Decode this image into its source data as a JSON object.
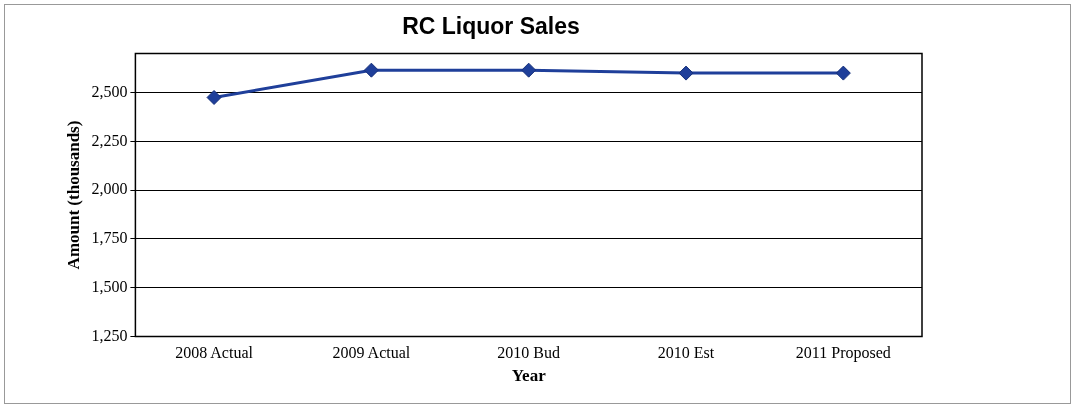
{
  "chart_data": {
    "type": "line",
    "title": "RC Liquor Sales",
    "xlabel": "Year",
    "ylabel": "Amount (thousands)",
    "categories": [
      "2008 Actual",
      "2009 Actual",
      "2010 Bud",
      "2010 Est",
      "2011 Proposed"
    ],
    "series": [
      {
        "color": "#1f3f9a",
        "values": [
          2475,
          2615,
          2615,
          2600,
          2600
        ]
      }
    ],
    "ylim": [
      1250,
      2700
    ],
    "yticks": [
      {
        "value": 1250,
        "label": "1,250"
      },
      {
        "value": 1500,
        "label": "1,500"
      },
      {
        "value": 1750,
        "label": "1,750"
      },
      {
        "value": 2000,
        "label": "2,000"
      },
      {
        "value": 2250,
        "label": "2,250"
      },
      {
        "value": 2500,
        "label": "2,500"
      }
    ],
    "grid": "y",
    "legend": false,
    "marker": "diamond",
    "line_style": "solid"
  }
}
